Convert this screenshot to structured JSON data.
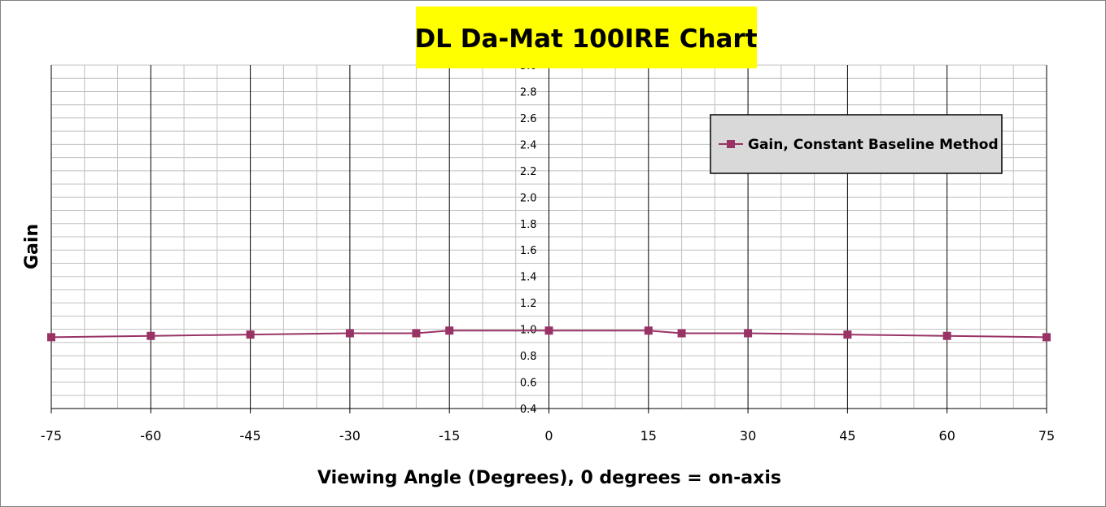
{
  "chart_data": {
    "type": "line",
    "title": "DL Da-Mat 100IRE Chart",
    "xlabel": "Viewing Angle (Degrees), 0 degrees = on-axis",
    "ylabel": "Gain",
    "xlim": [
      -75,
      75
    ],
    "ylim": [
      0.4,
      3.0
    ],
    "x_ticks": [
      -75,
      -60,
      -45,
      -30,
      -15,
      0,
      15,
      30,
      45,
      60,
      75
    ],
    "x_tick_labels": [
      "-75",
      "-60",
      "-45",
      "-30",
      "-15",
      "0",
      "15",
      "30",
      "45",
      "60",
      "75"
    ],
    "y_ticks": [
      0.4,
      0.6,
      0.8,
      1.0,
      1.2,
      1.4,
      1.6,
      1.8,
      2.0,
      2.2,
      2.4,
      2.6,
      2.8,
      3.0
    ],
    "y_tick_labels": [
      "0.4",
      "0.6",
      "0.8",
      "1.0",
      "1.2",
      "1.4",
      "1.6",
      "1.8",
      "2.0",
      "2.2",
      "2.4",
      "2.6",
      "2.8",
      "3.0"
    ],
    "grid": true,
    "legend_position": "top-right",
    "series": [
      {
        "name": "Gain, Constant Baseline Method",
        "color": "#993366",
        "marker": "square",
        "x": [
          -75,
          -60,
          -45,
          -30,
          -20,
          -15,
          0,
          15,
          20,
          30,
          45,
          60,
          75
        ],
        "y": [
          0.94,
          0.95,
          0.96,
          0.97,
          0.97,
          0.99,
          0.99,
          0.99,
          0.97,
          0.97,
          0.96,
          0.95,
          0.94
        ]
      }
    ],
    "title_background": "#ffff00",
    "legend_background": "#d9d9d9",
    "major_grid_color": "#000000",
    "minor_grid_color": "#c0c0c0"
  }
}
